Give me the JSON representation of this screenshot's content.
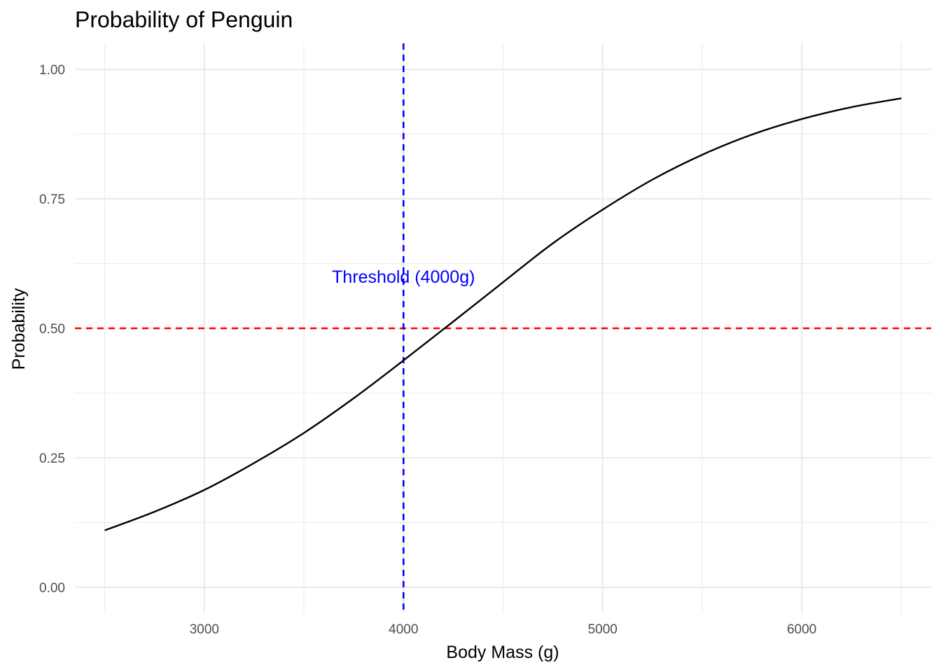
{
  "chart_data": {
    "type": "line",
    "title": "Probability of Penguin",
    "xlabel": "Body Mass (g)",
    "ylabel": "Probability",
    "xlim": [
      2350,
      6650
    ],
    "ylim": [
      -0.05,
      1.05
    ],
    "x_ticks": [
      3000,
      4000,
      5000,
      6000
    ],
    "x_minor_ticks": [
      2500,
      3500,
      4500,
      5500,
      6500
    ],
    "y_ticks": [
      0.0,
      0.25,
      0.5,
      0.75,
      1.0
    ],
    "y_tick_labels": [
      "0.00",
      "0.25",
      "0.50",
      "0.75",
      "1.00"
    ],
    "y_minor_ticks": [
      0.125,
      0.375,
      0.625,
      0.875
    ],
    "grid": true,
    "series": [
      {
        "color": "#000000",
        "x": [
          2500,
          2750,
          3000,
          3250,
          3500,
          3750,
          4000,
          4250,
          4500,
          4750,
          5000,
          5250,
          5500,
          5750,
          6000,
          6250,
          6500
        ],
        "y": [
          0.11,
          0.146,
          0.188,
          0.24,
          0.298,
          0.365,
          0.438,
          0.513,
          0.589,
          0.664,
          0.729,
          0.787,
          0.835,
          0.874,
          0.904,
          0.927,
          0.944
        ]
      }
    ],
    "reference_lines": [
      {
        "orientation": "horizontal",
        "value": 0.5,
        "color": "#ff0000",
        "style": "dashed"
      },
      {
        "orientation": "vertical",
        "value": 4000,
        "color": "#0000ff",
        "style": "dashed"
      }
    ],
    "annotations": [
      {
        "text": "Threshold (4000g)",
        "x": 4000,
        "y": 0.6,
        "color": "#0000ff"
      }
    ]
  }
}
